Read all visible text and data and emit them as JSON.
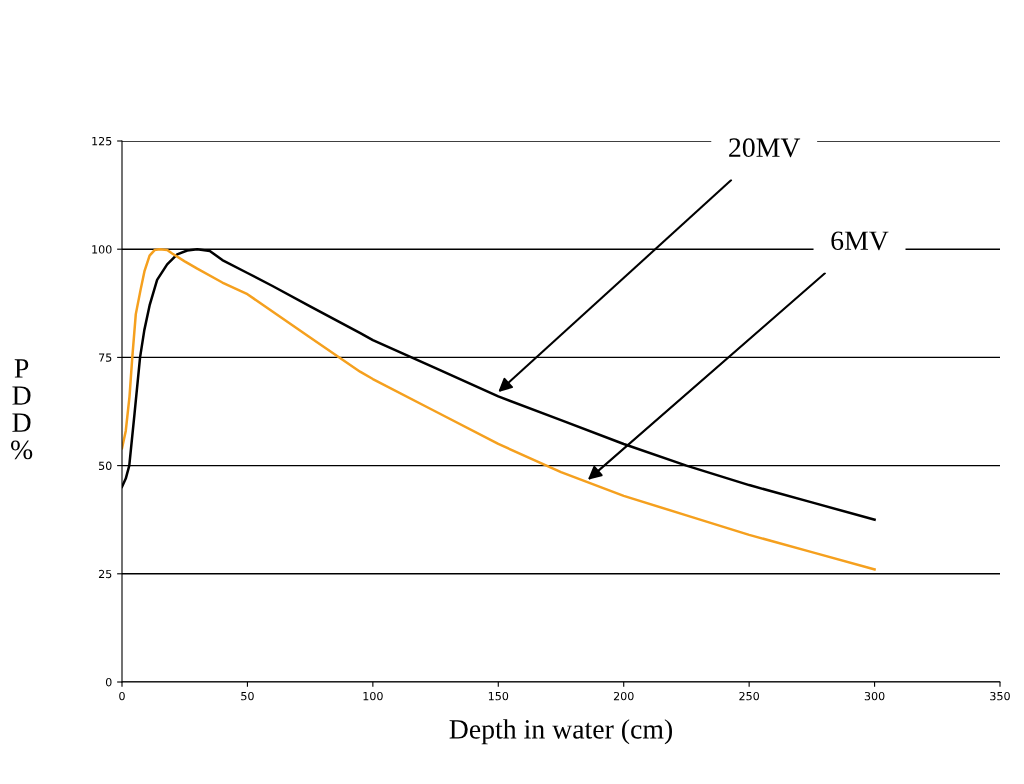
{
  "chart_data": {
    "type": "line",
    "xlabel": "Depth in water (cm)",
    "ylabel": "P\nD\nD\n%",
    "xlim": [
      0,
      350
    ],
    "xticks": [
      0,
      50,
      100,
      150,
      200,
      250,
      300,
      350
    ],
    "ylim": [
      0,
      125
    ],
    "yticks": [
      0,
      25,
      50,
      75,
      100,
      125
    ],
    "grid": "y",
    "marker": "none",
    "line_style": "solid",
    "series": [
      {
        "color": "#000000",
        "x": [
          0,
          1.5,
          2.9,
          5,
          7.2,
          8.9,
          11,
          14,
          18,
          22,
          26,
          30,
          35,
          40,
          50,
          60,
          75,
          95,
          100,
          125,
          150,
          175,
          200,
          225,
          250,
          275,
          300
        ],
        "values": [
          45.1,
          47,
          50,
          62,
          75,
          81.3,
          87,
          92.9,
          96.5,
          98.8,
          99.7,
          100,
          99.6,
          97.5,
          94.5,
          91.5,
          86.8,
          80.6,
          79,
          72.5,
          66,
          60.5,
          55,
          50,
          45.5,
          41.5,
          37.5
        ]
      },
      {
        "color": "#f5a01e",
        "x": [
          0,
          1.5,
          3,
          4.1,
          5.5,
          7.4,
          9,
          11,
          13,
          15,
          18,
          20,
          25,
          30,
          40,
          50,
          75,
          94.9,
          100,
          125,
          150,
          175,
          200,
          225,
          250,
          275,
          300
        ],
        "values": [
          54,
          58,
          66,
          75,
          85,
          90.6,
          95,
          98.5,
          99.8,
          100,
          99.8,
          99,
          97.2,
          95.5,
          92.3,
          89.6,
          79.6,
          71.7,
          70,
          62.5,
          55,
          48.5,
          43,
          38.5,
          34,
          30,
          26
        ]
      }
    ],
    "annotations": [
      {
        "text": "20MV",
        "x": 150,
        "y": 67
      },
      {
        "text": "6MV",
        "x": 185.7,
        "y": 46.7
      }
    ]
  }
}
